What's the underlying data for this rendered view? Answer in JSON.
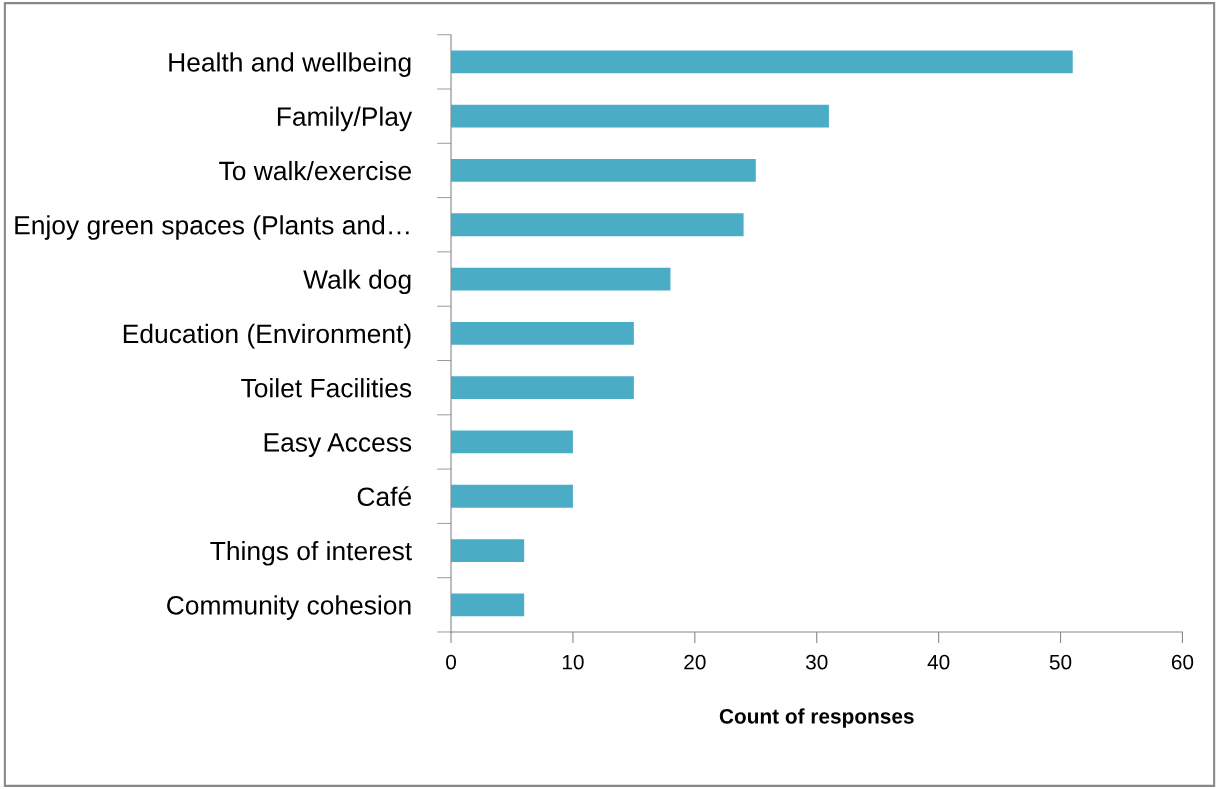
{
  "chart_data": {
    "type": "bar",
    "orientation": "horizontal",
    "xlabel": "Count of responses",
    "categories": [
      "Health and wellbeing",
      "Family/Play",
      "To walk/exercise",
      "Enjoy green spaces (Plants and…",
      "Walk dog",
      "Education (Environment)",
      "Toilet Facilities",
      "Easy Access",
      "Café",
      "Things of interest",
      "Community cohesion"
    ],
    "values": [
      51,
      31,
      25,
      24,
      18,
      15,
      15,
      10,
      10,
      6,
      6
    ],
    "color": "#4bacc6",
    "xlim": [
      0,
      60
    ],
    "xticks": [
      0,
      10,
      20,
      30,
      40,
      50,
      60
    ],
    "grid": false,
    "legend": false
  }
}
